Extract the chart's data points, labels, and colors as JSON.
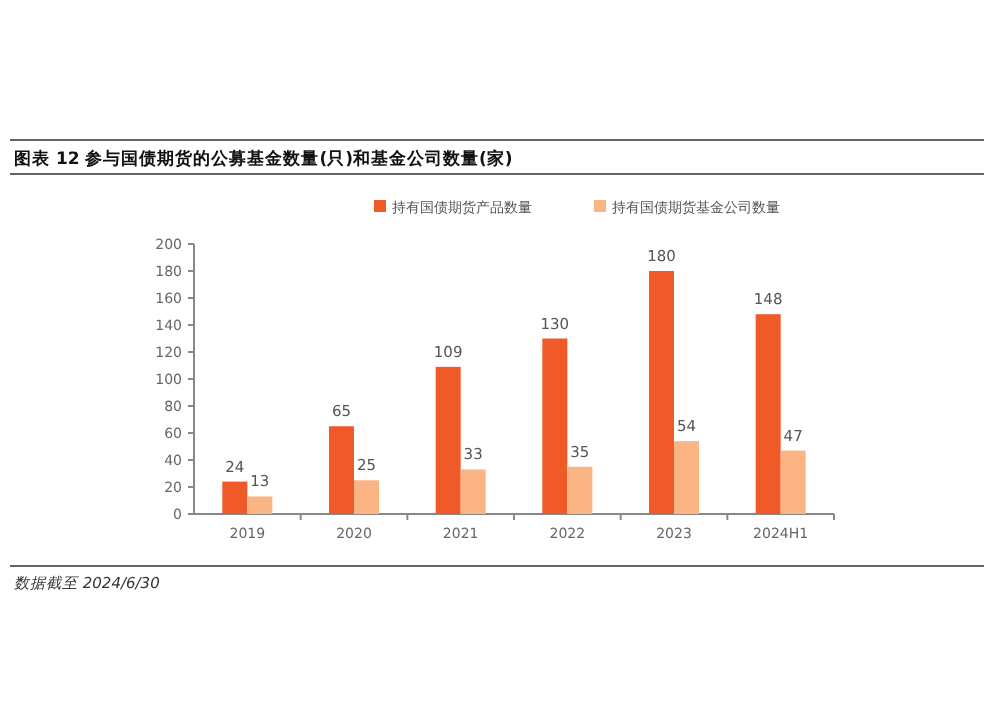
{
  "chart_data": {
    "type": "bar",
    "title": "图表 12   参与国债期货的公募基金数量(只)和基金公司数量(家)",
    "categories": [
      "2019",
      "2020",
      "2021",
      "2022",
      "2023",
      "2024H1"
    ],
    "series": [
      {
        "name": "持有国债期货产品数量",
        "color": "#f05a28",
        "values": [
          24,
          65,
          109,
          130,
          180,
          148
        ]
      },
      {
        "name": "持有国债期货基金公司数量",
        "color": "#fbb584",
        "values": [
          13,
          25,
          33,
          35,
          54,
          47
        ]
      }
    ],
    "ylim": [
      0,
      200
    ],
    "yticks": [
      0,
      20,
      40,
      60,
      80,
      100,
      120,
      140,
      160,
      180,
      200
    ],
    "data_labels": true,
    "legend": "top",
    "grid": false,
    "annotations": [
      "数据截至 2024/6/30"
    ]
  }
}
